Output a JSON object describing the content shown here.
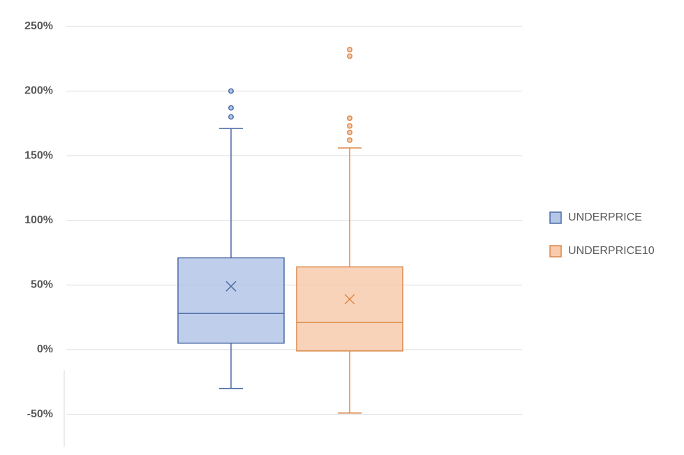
{
  "chart_data": {
    "type": "box",
    "ylim": [
      -75,
      265
    ],
    "yticks": [
      {
        "value": -50,
        "label": "-50%"
      },
      {
        "value": 0,
        "label": "0%"
      },
      {
        "value": 50,
        "label": "50%"
      },
      {
        "value": 100,
        "label": "100%"
      },
      {
        "value": 150,
        "label": "150%"
      },
      {
        "value": 200,
        "label": "200%"
      },
      {
        "value": 250,
        "label": "250%"
      }
    ],
    "grid": true,
    "legend": "right",
    "series": [
      {
        "name": "UNDERPRICE",
        "color": "#4a6aa5",
        "fill": "#b4c7e7",
        "min": -30,
        "q1": 5,
        "median": 28,
        "q3": 71,
        "max": 171,
        "mean": 49,
        "outliers": [
          180,
          187,
          200
        ]
      },
      {
        "name": "UNDERPRICE10",
        "color": "#d9884a",
        "fill": "#f8cbad",
        "min": -49,
        "q1": -1,
        "median": 21,
        "q3": 64,
        "max": 156,
        "mean": 39,
        "outliers": [
          162,
          168,
          173,
          179,
          227,
          232
        ]
      }
    ]
  }
}
